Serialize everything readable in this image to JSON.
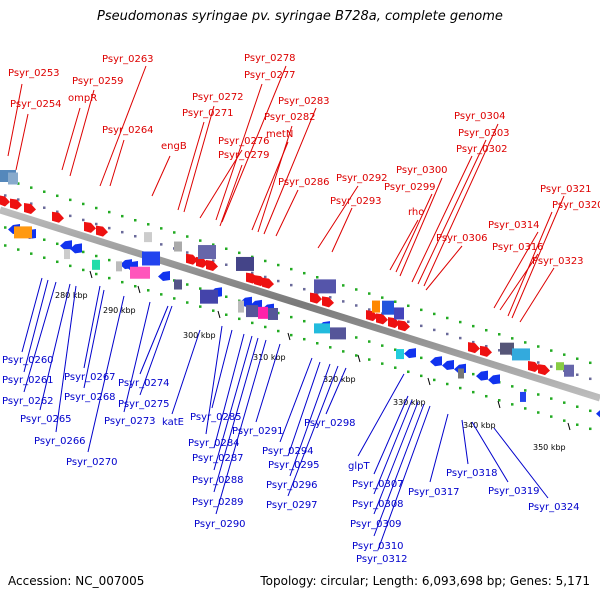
{
  "header": {
    "title": "Pseudomonas syringae pv. syringae B728a, complete genome"
  },
  "footer": {
    "accession": "Accession: NC_007005",
    "summary": "Topology: circular; Length: 6,093,698 bp; Genes: 5,171"
  },
  "colors": {
    "top_labels": "#dd0000",
    "bottom_labels": "#0000cc",
    "backbone": "#808080"
  },
  "scale_ticks": [
    "280 kbp",
    "290 kbp",
    "300 kbp",
    "310 kbp",
    "320 kbp",
    "330 kbp",
    "340 kbp",
    "350 kbp"
  ],
  "top_labels": [
    "Psyr_0253",
    "Psyr_0254",
    "ompR",
    "Psyr_0259",
    "Psyr_0263",
    "Psyr_0264",
    "engB",
    "Psyr_0271",
    "Psyr_0272",
    "Psyr_0276",
    "Psyr_0277",
    "Psyr_0278",
    "Psyr_0279",
    "metN",
    "Psyr_0282",
    "Psyr_0283",
    "Psyr_0286",
    "Psyr_0292",
    "Psyr_0293",
    "rho",
    "Psyr_0299",
    "Psyr_0300",
    "Psyr_0302",
    "Psyr_0303",
    "Psyr_0304",
    "Psyr_0306",
    "Psyr_0314",
    "Psyr_0316",
    "Psyr_0320",
    "Psyr_0321",
    "Psyr_0323"
  ],
  "bottom_labels": [
    "Psyr_0260",
    "Psyr_0261",
    "Psyr_0262",
    "Psyr_0265",
    "Psyr_0266",
    "Psyr_0267",
    "Psyr_0268",
    "Psyr_0270",
    "Psyr_0273",
    "Psyr_0274",
    "Psyr_0275",
    "katE",
    "Psyr_0284",
    "Psyr_0285",
    "Psyr_0287",
    "Psyr_0288",
    "Psyr_0289",
    "Psyr_0290",
    "Psyr_0291",
    "Psyr_0294",
    "Psyr_0295",
    "Psyr_0296",
    "Psyr_0297",
    "Psyr_0298",
    "glpT",
    "Psyr_0307",
    "Psyr_0308",
    "Psyr_0309",
    "Psyr_0310",
    "Psyr_0312",
    "Psyr_0317",
    "Psyr_0318",
    "Psyr_0319",
    "Psyr_0324"
  ]
}
